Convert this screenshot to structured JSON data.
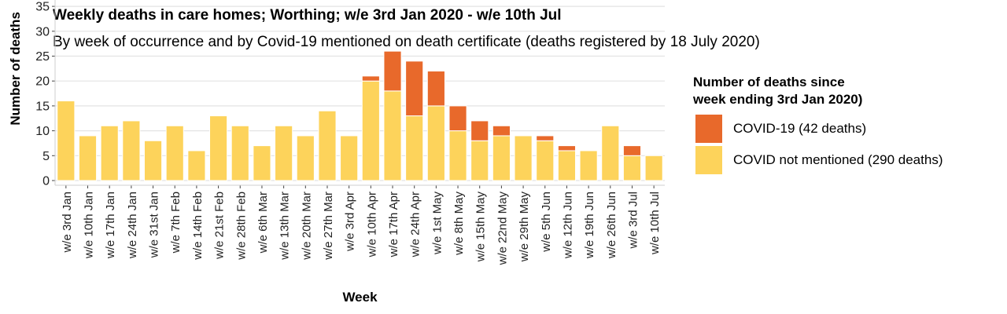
{
  "header": {
    "title": "Weekly deaths in care homes; Worthing; w/e 3rd Jan 2020 - w/e 10th Jul",
    "subtitle": "By week of occurrence and by Covid-19 mentioned on death certificate (deaths registered by 18 July 2020)"
  },
  "legend": {
    "title": "Number of deaths since week ending 3rd Jan 2020)",
    "title_line1": "Number of deaths since",
    "title_line2": "week ending 3rd Jan 2020)",
    "items": [
      {
        "label": "COVID-19 (42 deaths)",
        "color": "#e8692b"
      },
      {
        "label": "COVID not mentioned (290 deaths)",
        "color": "#fdd35b"
      }
    ]
  },
  "chart_data": {
    "type": "bar",
    "stacked": true,
    "title": "Weekly deaths in care homes; Worthing; w/e 3rd Jan 2020 - w/e 10th Jul",
    "xlabel": "Week",
    "ylabel": "Number of deaths",
    "ylim": [
      0,
      45
    ],
    "yticks": [
      0,
      5,
      10,
      15,
      20,
      25,
      30,
      35,
      40,
      45
    ],
    "grid": true,
    "legend_position": "right",
    "categories": [
      "w/e 3rd Jan",
      "w/e 10th Jan",
      "w/e 17th Jan",
      "w/e 24th Jan",
      "w/e 31st Jan",
      "w/e 7th Feb",
      "w/e 14th Feb",
      "w/e 21st Feb",
      "w/e 28th Feb",
      "w/e 6th Mar",
      "w/e 13th Mar",
      "w/e 20th Mar",
      "w/e 27th Mar",
      "w/e 3rd Apr",
      "w/e 10th Apr",
      "w/e 17th Apr",
      "w/e 24th Apr",
      "w/e 1st May",
      "w/e 8th May",
      "w/e 15th May",
      "w/e 22nd May",
      "w/e 29th May",
      "w/e 5th Jun",
      "w/e 12th Jun",
      "w/e 19th Jun",
      "w/e 26th Jun",
      "w/e 3rd Jul",
      "w/e 10th Jul"
    ],
    "series": [
      {
        "name": "COVID not mentioned (290 deaths)",
        "color": "#fdd35b",
        "values": [
          16,
          9,
          11,
          12,
          8,
          11,
          6,
          13,
          11,
          7,
          11,
          9,
          14,
          9,
          20,
          18,
          13,
          15,
          10,
          8,
          9,
          9,
          8,
          6,
          6,
          11,
          5,
          5
        ]
      },
      {
        "name": "COVID-19 (42 deaths)",
        "color": "#e8692b",
        "values": [
          0,
          0,
          0,
          0,
          0,
          0,
          0,
          0,
          0,
          0,
          0,
          0,
          0,
          0,
          1,
          8,
          11,
          7,
          5,
          4,
          2,
          0,
          1,
          1,
          0,
          0,
          2,
          0
        ]
      }
    ]
  }
}
